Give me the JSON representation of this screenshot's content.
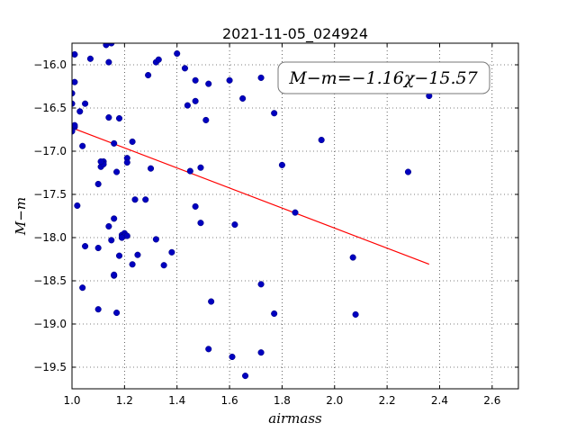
{
  "chart_data": {
    "type": "scatter",
    "title": "2021-11-05_024924",
    "xlabel": "airmass",
    "ylabel": "M−m",
    "xlim": [
      1.0,
      2.7
    ],
    "ylim": [
      -19.75,
      -15.75
    ],
    "y_inverted": true,
    "grid": true,
    "x_ticks": [
      1.0,
      1.2,
      1.4,
      1.6,
      1.8,
      2.0,
      2.2,
      2.4,
      2.6
    ],
    "x_tick_labels": [
      "1.0",
      "1.2",
      "1.4",
      "1.6",
      "1.8",
      "2.0",
      "2.2",
      "2.4",
      "2.6"
    ],
    "y_ticks": [
      -16.0,
      -16.5,
      -17.0,
      -17.5,
      -18.0,
      -18.5,
      -19.0,
      -19.5
    ],
    "y_tick_labels": [
      "−16.0",
      "−16.5",
      "−17.0",
      "−17.5",
      "−18.0",
      "−18.5",
      "−19.0",
      "−19.5"
    ],
    "annotation": "M−m=−1.16χ−15.57",
    "colors": {
      "points": "#0000bf",
      "fit_line": "#ff0000"
    },
    "fit": {
      "slope": -1.16,
      "intercept": -15.57,
      "x_range": [
        1.0,
        2.36
      ]
    },
    "series": [
      {
        "x": [
          1.0,
          1.0,
          1.01,
          1.0,
          1.01,
          1.01,
          1.03,
          1.05,
          1.07,
          1.02,
          1.04,
          1.01,
          1.05,
          1.04,
          1.1,
          1.1,
          1.12,
          1.11,
          1.12,
          1.14,
          1.15,
          1.14,
          1.16,
          1.18,
          1.17,
          1.13,
          1.14,
          1.15,
          1.16,
          1.1,
          1.11,
          1.18,
          1.19,
          1.2,
          1.21,
          1.21,
          1.23,
          1.19,
          1.2,
          1.21,
          1.16,
          1.24,
          1.23,
          1.19,
          1.16,
          1.17,
          1.25,
          1.28,
          1.29,
          1.3,
          1.32,
          1.32,
          1.33,
          1.35,
          1.38,
          1.4,
          1.43,
          1.44,
          1.47,
          1.47,
          1.45,
          1.49,
          1.47,
          1.49,
          1.51,
          1.52,
          1.53,
          1.52,
          1.6,
          1.62,
          1.61,
          1.65,
          1.66,
          1.72,
          1.72,
          1.72,
          1.77,
          1.77,
          1.8,
          1.85,
          1.95,
          2.07,
          2.08,
          2.28,
          2.36
        ],
        "y": [
          -16.33,
          -16.45,
          -16.72,
          -16.77,
          -16.2,
          -15.88,
          -16.54,
          -16.45,
          -15.93,
          -17.63,
          -16.94,
          -16.7,
          -18.1,
          -18.58,
          -18.12,
          -17.38,
          -17.12,
          -17.18,
          -17.15,
          -16.61,
          -15.75,
          -15.97,
          -16.91,
          -16.62,
          -17.24,
          -15.77,
          -17.87,
          -18.03,
          -17.78,
          -18.83,
          -17.12,
          -18.21,
          -17.97,
          -17.95,
          -17.08,
          -17.13,
          -16.89,
          -18.0,
          -17.98,
          -17.98,
          -18.44,
          -17.56,
          -18.31,
          -18.0,
          -18.43,
          -18.87,
          -18.2,
          -17.56,
          -16.12,
          -17.2,
          -15.97,
          -18.02,
          -15.94,
          -18.32,
          -18.17,
          -15.87,
          -16.04,
          -16.47,
          -16.18,
          -16.42,
          -17.23,
          -17.19,
          -17.64,
          -17.83,
          -16.64,
          -16.22,
          -18.74,
          -19.29,
          -16.18,
          -17.85,
          -19.38,
          -16.39,
          -19.6,
          -16.15,
          -18.54,
          -19.33,
          -18.88,
          -16.56,
          -17.16,
          -17.71,
          -16.87,
          -18.23,
          -18.89,
          -17.24,
          -16.36
        ]
      }
    ]
  }
}
